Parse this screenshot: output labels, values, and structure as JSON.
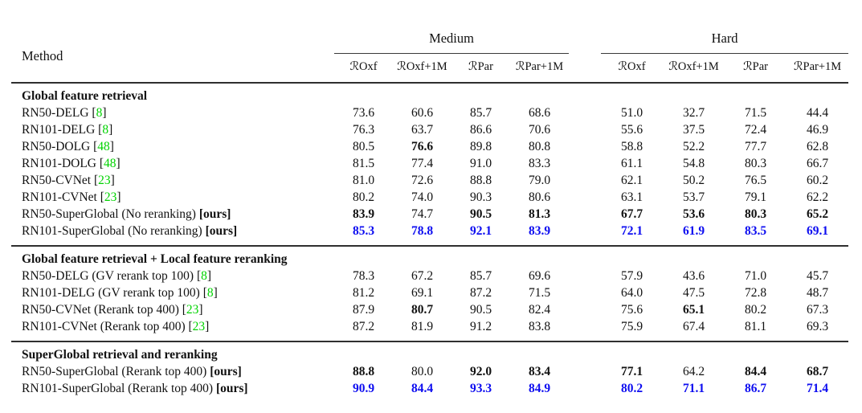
{
  "colors": {
    "highlight_blue": "#0d0df0",
    "citation_green": "#00d300",
    "rule_dark": "#2f2f2f",
    "text": "#111111"
  },
  "table": {
    "method_header": "Method",
    "groups": [
      {
        "label": "Medium",
        "columns": [
          "ℛOxf",
          "ℛOxf+1M",
          "ℛPar",
          "ℛPar+1M"
        ]
      },
      {
        "label": "Hard",
        "columns": [
          "ℛOxf",
          "ℛOxf+1M",
          "ℛPar",
          "ℛPar+1M"
        ]
      }
    ],
    "sections": [
      {
        "title": "Global feature retrieval",
        "rows": [
          {
            "method": "RN50-DELG",
            "cite": "8",
            "tag": null,
            "color": "black",
            "values": [
              "73.6",
              "60.6",
              "85.7",
              "68.6",
              "51.0",
              "32.7",
              "71.5",
              "44.4"
            ],
            "bold": [
              0,
              0,
              0,
              0,
              0,
              0,
              0,
              0
            ]
          },
          {
            "method": "RN101-DELG",
            "cite": "8",
            "tag": null,
            "color": "black",
            "values": [
              "76.3",
              "63.7",
              "86.6",
              "70.6",
              "55.6",
              "37.5",
              "72.4",
              "46.9"
            ],
            "bold": [
              0,
              0,
              0,
              0,
              0,
              0,
              0,
              0
            ]
          },
          {
            "method": "RN50-DOLG",
            "cite": "48",
            "tag": null,
            "color": "black",
            "values": [
              "80.5",
              "76.6",
              "89.8",
              "80.8",
              "58.8",
              "52.2",
              "77.7",
              "62.8"
            ],
            "bold": [
              0,
              1,
              0,
              0,
              0,
              0,
              0,
              0
            ]
          },
          {
            "method": "RN101-DOLG",
            "cite": "48",
            "tag": null,
            "color": "black",
            "values": [
              "81.5",
              "77.4",
              "91.0",
              "83.3",
              "61.1",
              "54.8",
              "80.3",
              "66.7"
            ],
            "bold": [
              0,
              0,
              0,
              0,
              0,
              0,
              0,
              0
            ]
          },
          {
            "method": "RN50-CVNet",
            "cite": "23",
            "tag": null,
            "color": "black",
            "values": [
              "81.0",
              "72.6",
              "88.8",
              "79.0",
              "62.1",
              "50.2",
              "76.5",
              "60.2"
            ],
            "bold": [
              0,
              0,
              0,
              0,
              0,
              0,
              0,
              0
            ]
          },
          {
            "method": "RN101-CVNet",
            "cite": "23",
            "tag": null,
            "color": "black",
            "values": [
              "80.2",
              "74.0",
              "90.3",
              "80.6",
              "63.1",
              "53.7",
              "79.1",
              "62.2"
            ],
            "bold": [
              0,
              0,
              0,
              0,
              0,
              0,
              0,
              0
            ]
          },
          {
            "method": "RN50-SuperGlobal (No reranking)",
            "cite": null,
            "tag": "[ours]",
            "color": "black",
            "values": [
              "83.9",
              "74.7",
              "90.5",
              "81.3",
              "67.7",
              "53.6",
              "80.3",
              "65.2"
            ],
            "bold": [
              1,
              0,
              1,
              1,
              1,
              1,
              1,
              1
            ]
          },
          {
            "method": "RN101-SuperGlobal (No reranking)",
            "cite": null,
            "tag": "[ours]",
            "color": "blue",
            "values": [
              "85.3",
              "78.8",
              "92.1",
              "83.9",
              "72.1",
              "61.9",
              "83.5",
              "69.1"
            ],
            "bold": [
              1,
              1,
              1,
              1,
              1,
              1,
              1,
              1
            ]
          }
        ]
      },
      {
        "title": "Global feature retrieval + Local feature reranking",
        "rows": [
          {
            "method": "RN50-DELG (GV rerank top 100)",
            "cite": "8",
            "tag": null,
            "color": "black",
            "values": [
              "78.3",
              "67.2",
              "85.7",
              "69.6",
              "57.9",
              "43.6",
              "71.0",
              "45.7"
            ],
            "bold": [
              0,
              0,
              0,
              0,
              0,
              0,
              0,
              0
            ]
          },
          {
            "method": "RN101-DELG (GV rerank top 100)",
            "cite": "8",
            "tag": null,
            "color": "black",
            "values": [
              "81.2",
              "69.1",
              "87.2",
              "71.5",
              "64.0",
              "47.5",
              "72.8",
              "48.7"
            ],
            "bold": [
              0,
              0,
              0,
              0,
              0,
              0,
              0,
              0
            ]
          },
          {
            "method": "RN50-CVNet (Rerank top 400)",
            "cite": "23",
            "tag": null,
            "color": "black",
            "values": [
              "87.9",
              "80.7",
              "90.5",
              "82.4",
              "75.6",
              "65.1",
              "80.2",
              "67.3"
            ],
            "bold": [
              0,
              1,
              0,
              0,
              0,
              1,
              0,
              0
            ]
          },
          {
            "method": "RN101-CVNet (Rerank top 400)",
            "cite": "23",
            "tag": null,
            "color": "black",
            "values": [
              "87.2",
              "81.9",
              "91.2",
              "83.8",
              "75.9",
              "67.4",
              "81.1",
              "69.3"
            ],
            "bold": [
              0,
              0,
              0,
              0,
              0,
              0,
              0,
              0
            ]
          }
        ]
      },
      {
        "title": "SuperGlobal retrieval and reranking",
        "rows": [
          {
            "method": "RN50-SuperGlobal (Rerank top 400)",
            "cite": null,
            "tag": "[ours]",
            "color": "black",
            "values": [
              "88.8",
              "80.0",
              "92.0",
              "83.4",
              "77.1",
              "64.2",
              "84.4",
              "68.7"
            ],
            "bold": [
              1,
              0,
              1,
              1,
              1,
              0,
              1,
              1
            ]
          },
          {
            "method": "RN101-SuperGlobal (Rerank top 400)",
            "cite": null,
            "tag": "[ours]",
            "color": "blue",
            "values": [
              "90.9",
              "84.4",
              "93.3",
              "84.9",
              "80.2",
              "71.1",
              "86.7",
              "71.4"
            ],
            "bold": [
              1,
              1,
              1,
              1,
              1,
              1,
              1,
              1
            ]
          }
        ]
      }
    ]
  }
}
